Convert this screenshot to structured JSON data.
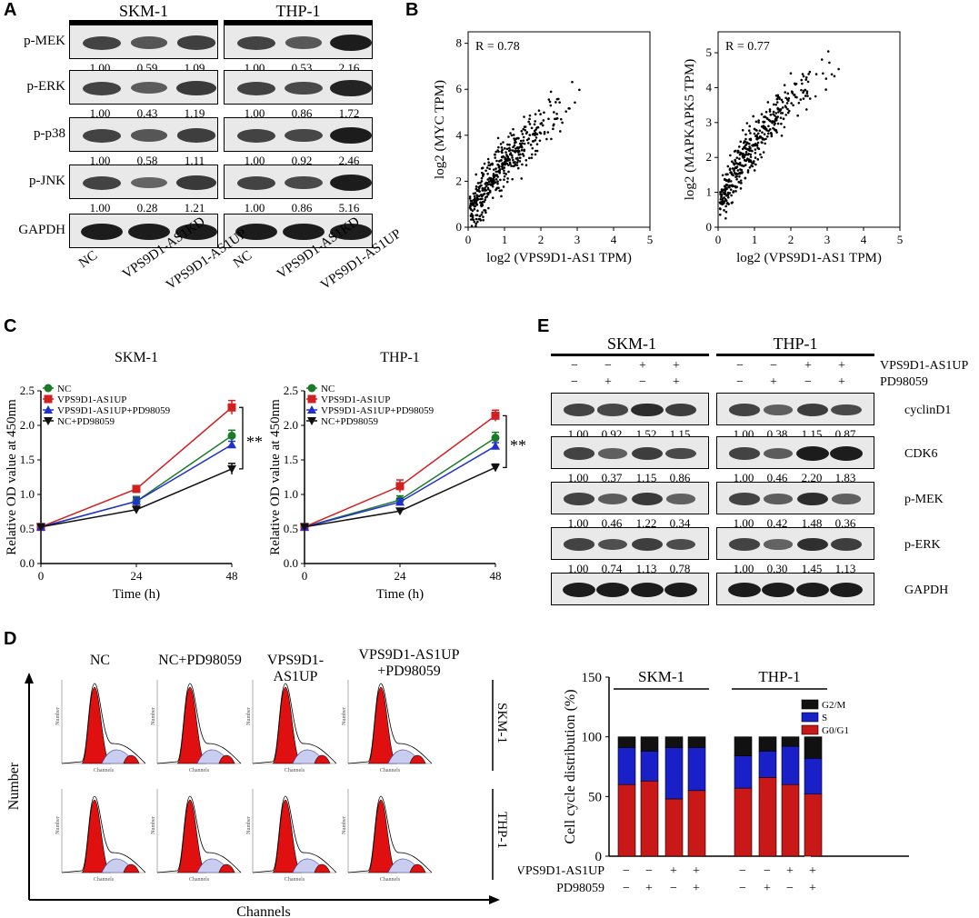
{
  "panels": {
    "A": "A",
    "B": "B",
    "C": "C",
    "D": "D",
    "E": "E"
  },
  "panelA": {
    "cells": [
      "SKM-1",
      "THP-1"
    ],
    "rows": [
      {
        "label": "p-MEK",
        "skm": [
          "1.00",
          "0.59",
          "1.09"
        ],
        "thp": [
          "1.00",
          "0.53",
          "2.16"
        ]
      },
      {
        "label": "p-ERK",
        "skm": [
          "1.00",
          "0.43",
          "1.19"
        ],
        "thp": [
          "1.00",
          "0.86",
          "1.72"
        ]
      },
      {
        "label": "p-p38",
        "skm": [
          "1.00",
          "0.58",
          "1.11"
        ],
        "thp": [
          "1.00",
          "0.92",
          "2.46"
        ]
      },
      {
        "label": "p-JNK",
        "skm": [
          "1.00",
          "0.28",
          "1.21"
        ],
        "thp": [
          "1.00",
          "0.86",
          "5.16"
        ]
      },
      {
        "label": "GAPDH",
        "skm": [],
        "thp": []
      }
    ],
    "lanes": [
      "NC",
      "VPS9D1-AS1KD",
      "VPS9D1-AS1UP"
    ]
  },
  "panelB": {
    "charts": [
      {
        "type": "scatter",
        "r": "R = 0.78",
        "xlabel": "log2 (VPS9D1-AS1 TPM)",
        "ylabel": "log2 (MYC TPM)",
        "xlim": [
          0,
          5
        ],
        "ylim": [
          0,
          8.5
        ],
        "xticks": [
          "0",
          "1",
          "2",
          "3",
          "4",
          "5"
        ],
        "yticks": [
          "0",
          "2",
          "4",
          "6",
          "8"
        ]
      },
      {
        "type": "scatter",
        "r": "R = 0.77",
        "xlabel": "log2 (VPS9D1-AS1 TPM)",
        "ylabel": "log2 (MAPKAPK5 TPM)",
        "xlim": [
          0,
          5
        ],
        "ylim": [
          0,
          5.6
        ],
        "xticks": [
          "0",
          "1",
          "2",
          "3",
          "4",
          "5"
        ],
        "yticks": [
          "0",
          "1",
          "2",
          "3",
          "4",
          "5"
        ]
      }
    ]
  },
  "chart_data": [
    {
      "type": "line",
      "title": "SKM-1",
      "x": [
        0,
        24,
        48
      ],
      "xlabel": "Time (h)",
      "ylabel": "Relative OD value at 450nm",
      "ylim": [
        0,
        2.5
      ],
      "yticks": [
        "0.0",
        "0.5",
        "1.0",
        "1.5",
        "2.0",
        "2.5"
      ],
      "xticks": [
        "0",
        "24",
        "48"
      ],
      "sig": "**",
      "series": [
        {
          "name": "NC",
          "values": [
            0.53,
            0.9,
            1.85
          ],
          "err": [
            0.03,
            0.07,
            0.08
          ],
          "color": "#1a7a2a",
          "marker": "circle"
        },
        {
          "name": "VPS9D1-AS1UP",
          "values": [
            0.53,
            1.08,
            2.26
          ],
          "err": [
            0.03,
            0.04,
            0.1
          ],
          "color": "#d12020",
          "marker": "square"
        },
        {
          "name": "VPS9D1-AS1UP+PD98059",
          "values": [
            0.53,
            0.9,
            1.72
          ],
          "err": [
            0.03,
            0.05,
            0.05
          ],
          "color": "#2030d0",
          "marker": "triangle"
        },
        {
          "name": "NC+PD98059",
          "values": [
            0.53,
            0.78,
            1.37
          ],
          "err": [
            0.03,
            0.05,
            0.08
          ],
          "color": "#111111",
          "marker": "tridown"
        }
      ]
    },
    {
      "type": "line",
      "title": "THP-1",
      "x": [
        0,
        24,
        48
      ],
      "xlabel": "Time (h)",
      "ylabel": "Relative OD value at 450nm",
      "ylim": [
        0,
        2.5
      ],
      "yticks": [
        "0.0",
        "0.5",
        "1.0",
        "1.5",
        "2.0",
        "2.5"
      ],
      "xticks": [
        "0",
        "24",
        "48"
      ],
      "sig": "**",
      "series": [
        {
          "name": "NC",
          "values": [
            0.53,
            0.92,
            1.82
          ],
          "err": [
            0.03,
            0.06,
            0.08
          ],
          "color": "#1a7a2a",
          "marker": "circle"
        },
        {
          "name": "VPS9D1-AS1UP",
          "values": [
            0.53,
            1.12,
            2.14
          ],
          "err": [
            0.03,
            0.09,
            0.08
          ],
          "color": "#d12020",
          "marker": "square"
        },
        {
          "name": "VPS9D1-AS1UP+PD98059",
          "values": [
            0.53,
            0.89,
            1.7
          ],
          "err": [
            0.03,
            0.05,
            0.05
          ],
          "color": "#2030d0",
          "marker": "triangle"
        },
        {
          "name": "NC+PD98059",
          "values": [
            0.53,
            0.76,
            1.39
          ],
          "err": [
            0.03,
            0.04,
            0.05
          ],
          "color": "#111111",
          "marker": "tridown"
        }
      ]
    },
    {
      "type": "bar",
      "stacked": true,
      "ylabel": "Cell cycle distribution (%)",
      "ylim": [
        0,
        150
      ],
      "yticks": [
        "0",
        "50",
        "100",
        "150"
      ],
      "groups": [
        "SKM-1",
        "THP-1"
      ],
      "legend": [
        "G2/M",
        "S",
        "G0/G1"
      ],
      "colors": {
        "G2/M": "#111111",
        "S": "#1a20c8",
        "G0/G1": "#c81818"
      },
      "bars": [
        {
          "G0/G1": 60,
          "S": 31,
          "G2/M": 9
        },
        {
          "G0/G1": 63,
          "S": 25,
          "G2/M": 12
        },
        {
          "G0/G1": 48,
          "S": 43,
          "G2/M": 9
        },
        {
          "G0/G1": 55,
          "S": 36,
          "G2/M": 9
        },
        {
          "G0/G1": 57,
          "S": 27,
          "G2/M": 16
        },
        {
          "G0/G1": 66,
          "S": 22,
          "G2/M": 12
        },
        {
          "G0/G1": 60,
          "S": 32,
          "G2/M": 8
        },
        {
          "G0/G1": 52,
          "S": 30,
          "G2/M": 18
        }
      ],
      "treat_rows": [
        {
          "label": "VPS9D1-AS1UP",
          "signs": [
            "−",
            "−",
            "+",
            "+",
            "−",
            "−",
            "+",
            "+"
          ]
        },
        {
          "label": "PD98059",
          "signs": [
            "−",
            "+",
            "−",
            "+",
            "−",
            "+",
            "−",
            "+"
          ]
        }
      ]
    }
  ],
  "panelD": {
    "cols": [
      "NC",
      "NC+PD98059",
      "VPS9D1-AS1UP",
      "VPS9D1-AS1UP",
      "+PD98059"
    ],
    "rows": [
      "SKM-1",
      "THP-1"
    ],
    "ylabel": "Number",
    "xlabel": "Channels",
    "small_x": "Channels",
    "small_y": "Number"
  },
  "panelE": {
    "cells": [
      "SKM-1",
      "THP-1"
    ],
    "treatments": [
      {
        "label": "VPS9D1-AS1UP",
        "signs": [
          "−",
          "−",
          "+",
          "+"
        ]
      },
      {
        "label": "PD98059",
        "signs": [
          "−",
          "+",
          "−",
          "+"
        ]
      }
    ],
    "rows": [
      {
        "label": "cyclinD1",
        "skm": [
          "1.00",
          "0.92",
          "1.52",
          "1.15"
        ],
        "thp": [
          "1.00",
          "0.38",
          "1.15",
          "0.87"
        ]
      },
      {
        "label": "CDK6",
        "skm": [
          "1.00",
          "0.37",
          "1.15",
          "0.86"
        ],
        "thp": [
          "1.00",
          "0.46",
          "2.20",
          "1.83"
        ]
      },
      {
        "label": "p-MEK",
        "skm": [
          "1.00",
          "0.46",
          "1.22",
          "0.34"
        ],
        "thp": [
          "1.00",
          "0.42",
          "1.48",
          "0.36"
        ]
      },
      {
        "label": "p-ERK",
        "skm": [
          "1.00",
          "0.74",
          "1.13",
          "0.78"
        ],
        "thp": [
          "1.00",
          "0.30",
          "1.45",
          "1.13"
        ]
      },
      {
        "label": "GAPDH",
        "skm": [],
        "thp": []
      }
    ]
  }
}
